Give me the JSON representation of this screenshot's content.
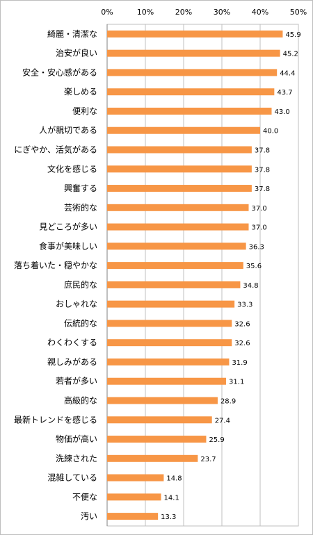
{
  "chart_data": {
    "type": "bar",
    "orientation": "horizontal",
    "title": "",
    "xlabel": "",
    "ylabel": "",
    "xlim": [
      0,
      50
    ],
    "tick_labels": [
      "0%",
      "10%",
      "20%",
      "30%",
      "40%",
      "50%"
    ],
    "grid": true,
    "bar_color": "#f79646",
    "categories": [
      "綺麗・清潔な",
      "治安が良い",
      "安全・安心感がある",
      "楽しめる",
      "便利な",
      "人が親切である",
      "にぎやか、活気がある",
      "文化を感じる",
      "興奮する",
      "芸術的な",
      "見どころが多い",
      "食事が美味しい",
      "落ち着いた・穏やかな",
      "庶民的な",
      "おしゃれな",
      "伝統的な",
      "わくわくする",
      "親しみがある",
      "若者が多い",
      "高級的な",
      "最新トレンドを感じる",
      "物価が高い",
      "洗練された",
      "混雑している",
      "不便な",
      "汚い"
    ],
    "values": [
      45.9,
      45.2,
      44.4,
      43.7,
      43.0,
      40.0,
      37.8,
      37.8,
      37.8,
      37.0,
      37.0,
      36.3,
      35.6,
      34.8,
      33.3,
      32.6,
      32.6,
      31.9,
      31.1,
      28.9,
      27.4,
      25.9,
      23.7,
      14.8,
      14.1,
      13.3
    ],
    "value_labels": [
      "45.9",
      "45.2",
      "44.4",
      "43.7",
      "43.0",
      "40.0",
      "37.8",
      "37.8",
      "37.8",
      "37.0",
      "37.0",
      "36.3",
      "35.6",
      "34.8",
      "33.3",
      "32.6",
      "32.6",
      "31.9",
      "31.1",
      "28.9",
      "27.4",
      "25.9",
      "23.7",
      "14.8",
      "14.1",
      "13.3"
    ]
  }
}
